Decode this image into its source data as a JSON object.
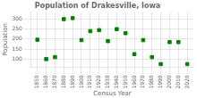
{
  "chart_data": {
    "type": "scatter",
    "title": "Population of Drakesville, Iowa",
    "xlabel": "Census Year",
    "ylabel": "Population",
    "x": [
      1850,
      1860,
      1870,
      1880,
      1890,
      1900,
      1910,
      1920,
      1930,
      1940,
      1950,
      1960,
      1970,
      1980,
      1990,
      2000,
      2010,
      2020
    ],
    "values": [
      197,
      100,
      110,
      300,
      305,
      195,
      240,
      245,
      190,
      250,
      230,
      125,
      195,
      110,
      75,
      185,
      185,
      75
    ],
    "color": "#008000",
    "marker": "square",
    "xlim": [
      1843,
      2027
    ],
    "ylim": [
      60,
      335
    ],
    "xticks": [
      1850,
      1860,
      1870,
      1880,
      1890,
      1900,
      1910,
      1920,
      1930,
      1940,
      1950,
      1960,
      1970,
      1980,
      1990,
      2000,
      2010,
      2020
    ],
    "yticks": [
      100,
      150,
      200,
      250,
      300
    ],
    "grid": true
  }
}
